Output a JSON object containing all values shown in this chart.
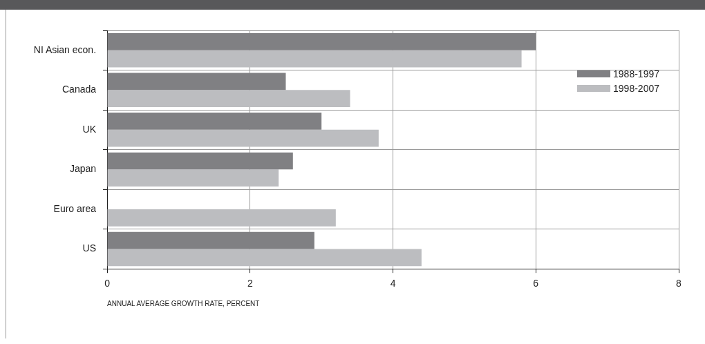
{
  "chart_data": {
    "type": "bar",
    "orientation": "horizontal",
    "xlabel": "ANNUAL AVERAGE GROWTH RATE, PERCENT",
    "categories": [
      "NI Asian econ.",
      "Canada",
      "UK",
      "Japan",
      "Euro area",
      "US"
    ],
    "series": [
      {
        "name": "1988-1997",
        "color": "#808083",
        "values": [
          6.0,
          2.5,
          3.0,
          2.6,
          null,
          2.9
        ]
      },
      {
        "name": "1998-2007",
        "color": "#bcbdc0",
        "values": [
          5.8,
          3.4,
          3.8,
          2.4,
          3.2,
          4.4
        ]
      }
    ],
    "xlim": [
      0,
      8
    ],
    "xticks": [
      0,
      2,
      4,
      6,
      8
    ],
    "grid": true,
    "legend": "top right"
  }
}
